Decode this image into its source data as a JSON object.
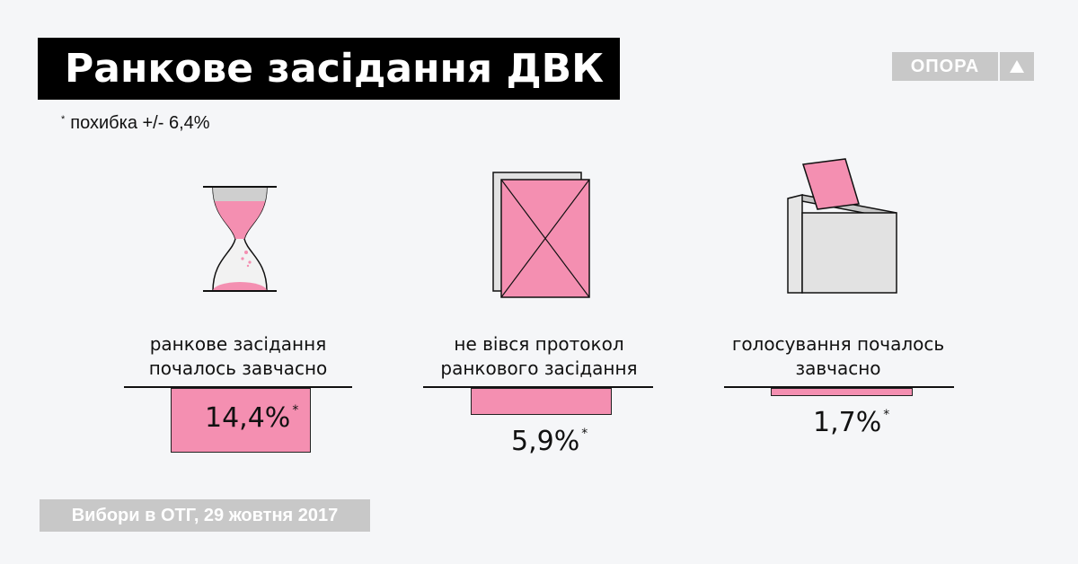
{
  "title": "Ранкове засідання ДВК",
  "brand": {
    "name": "ОПОРА",
    "icon": "triangle-up-icon"
  },
  "note": {
    "marker": "*",
    "text": "похибка +/- 6,4%"
  },
  "footer": "Вибори в ОТГ, 29 жовтня 2017",
  "colors": {
    "accent": "#f48fb1",
    "box": "#e2e2e2",
    "grey": "#c8c8c8"
  },
  "chart_data": {
    "type": "bar",
    "categories": [
      "ранкове засідання почалось завчасно",
      "не вівся протокол ранкового засідання",
      "голосування почалось завчасно"
    ],
    "values": [
      14.4,
      5.9,
      1.7
    ],
    "value_labels": [
      "14,4%",
      "5,9%",
      "1,7%"
    ],
    "value_marker": "*",
    "icons": [
      "hourglass-icon",
      "protocol-sheet-icon",
      "ballot-box-icon"
    ],
    "label_lines": [
      [
        "ранкове засідання",
        "почалось завчасно"
      ],
      [
        "не вівся протокол",
        "ранкового засідання"
      ],
      [
        "голосування почалось",
        "завчасно"
      ]
    ]
  }
}
